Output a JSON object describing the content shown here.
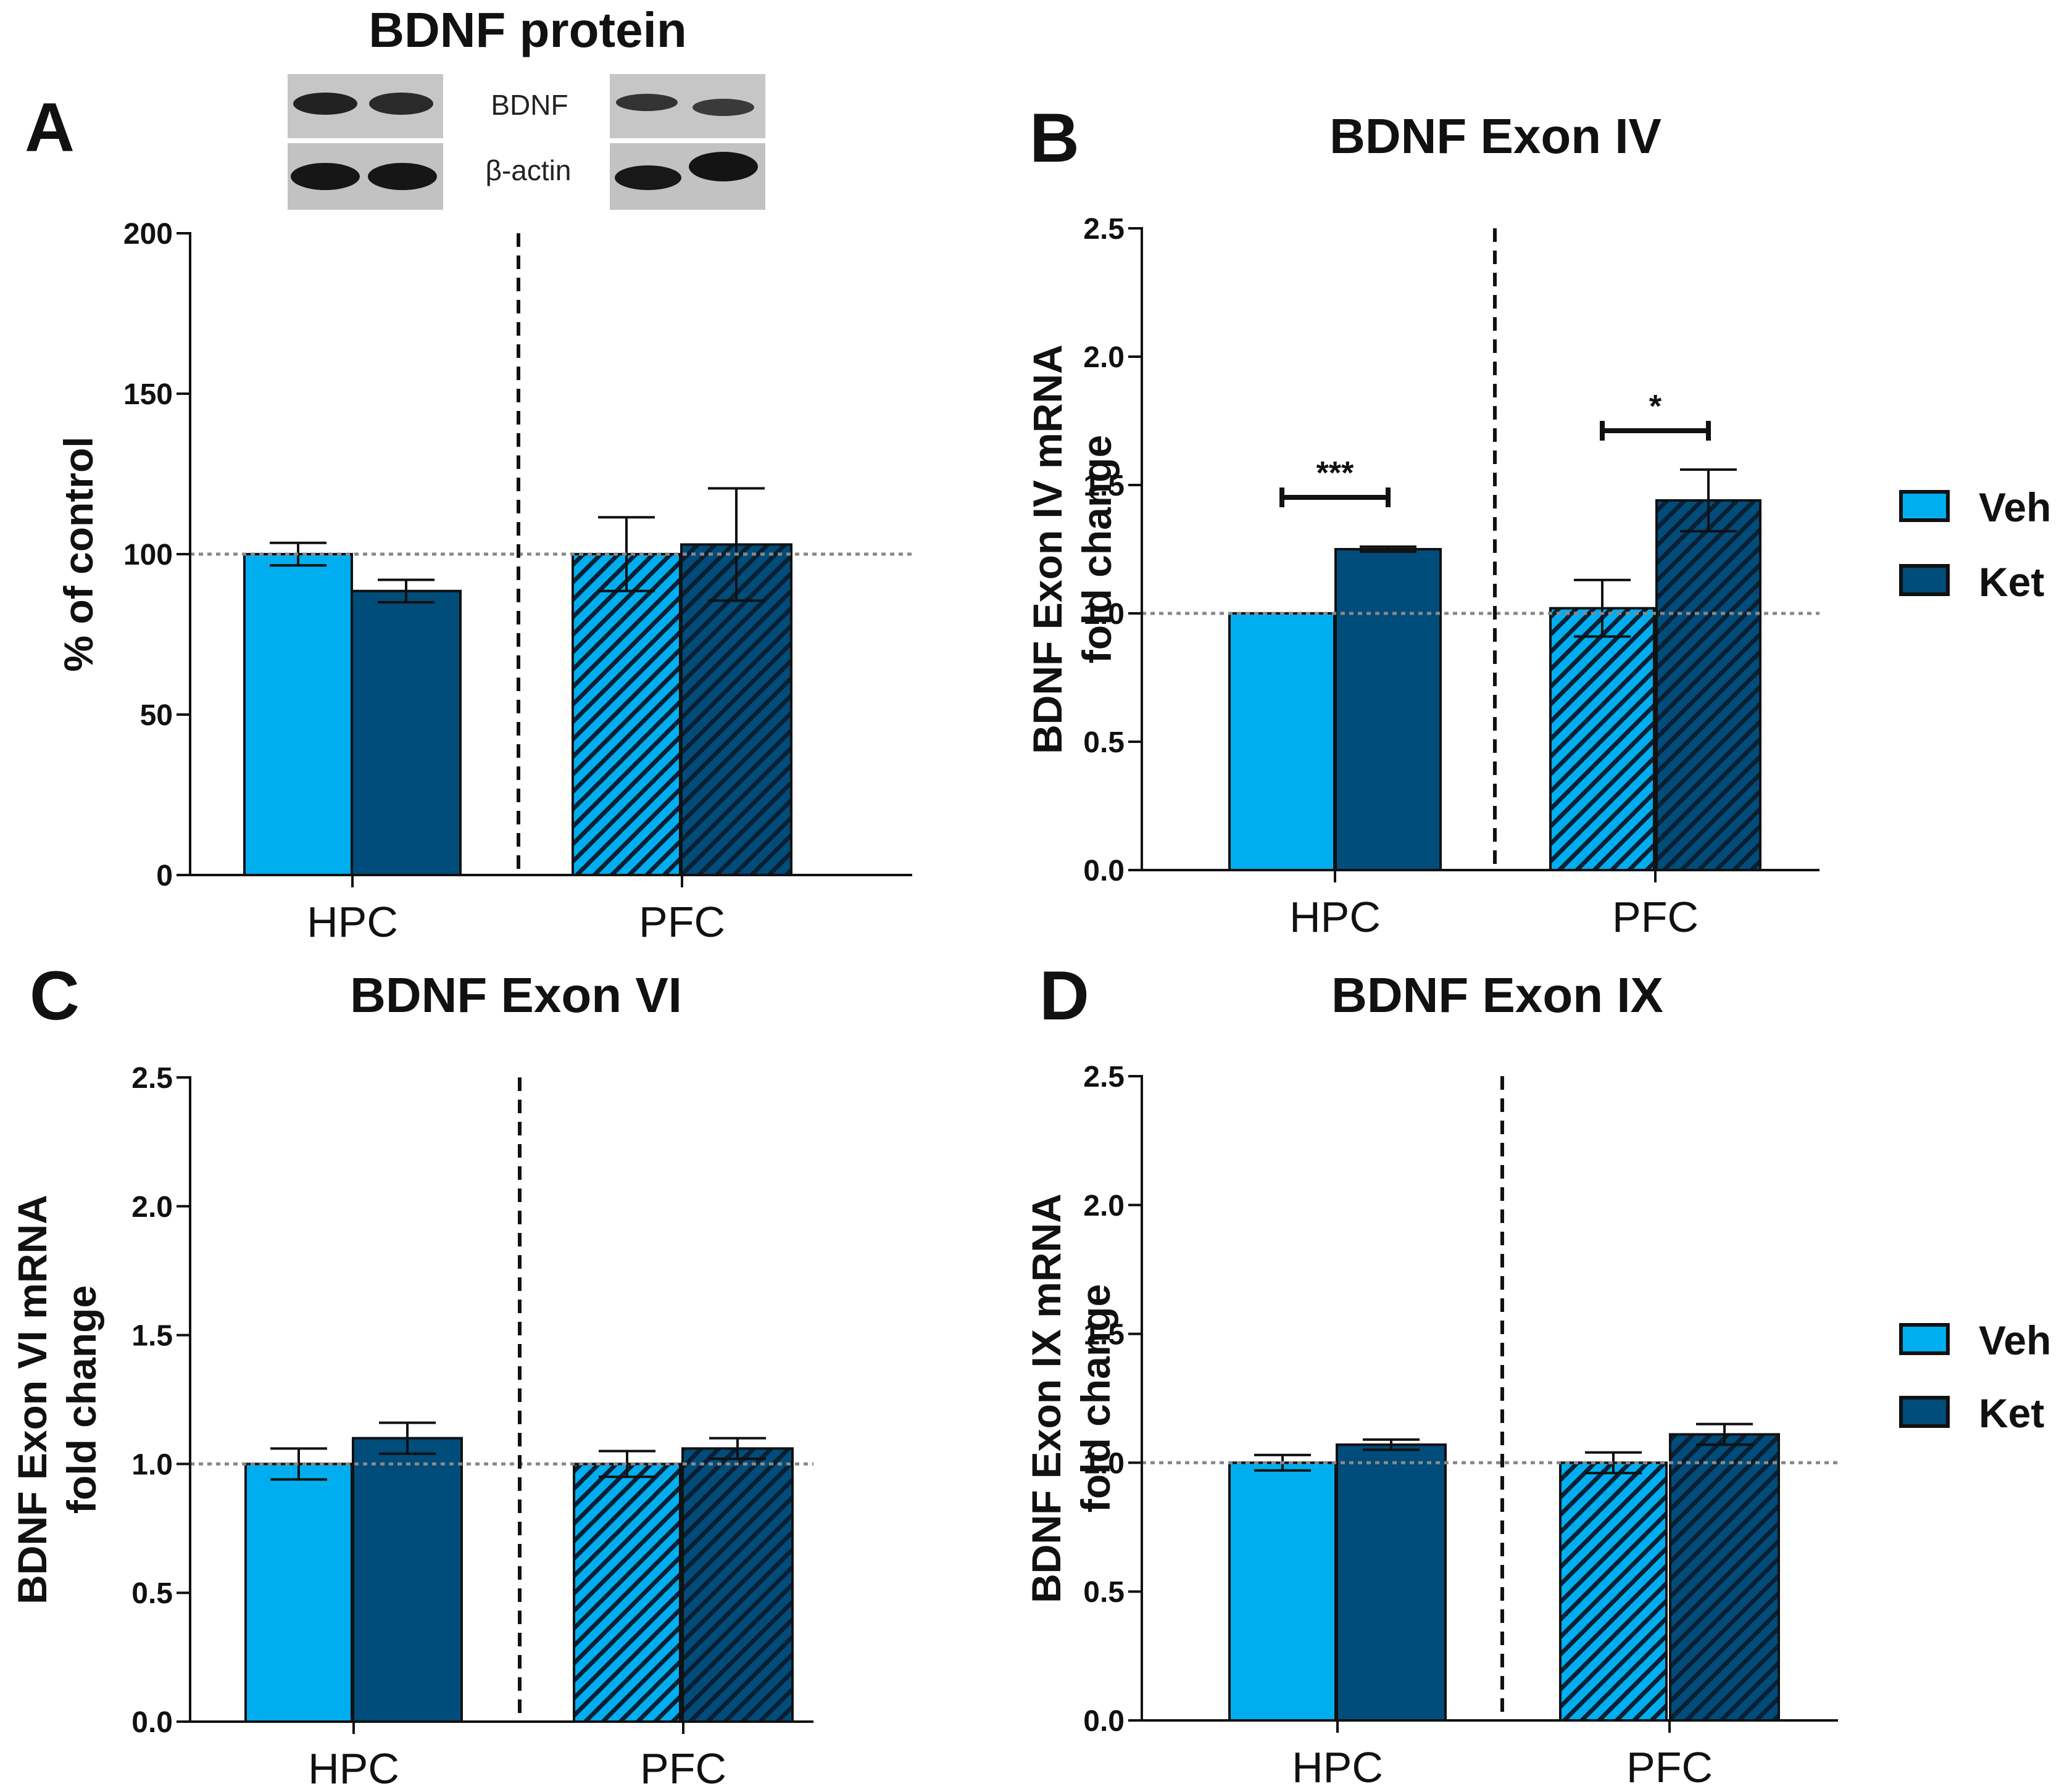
{
  "colors": {
    "veh": "#00aeef",
    "ket": "#004c7a",
    "axis": "#111111",
    "reference_line": "#888888",
    "hatch": "#0a1f33",
    "blot_bg": "#c6c6c6",
    "band": "#222222"
  },
  "western_blot": {
    "title": "BDNF protein",
    "rows": [
      "BDNF",
      "β-actin"
    ]
  },
  "legend": {
    "items": [
      {
        "label": "Veh",
        "color": "#00aeef"
      },
      {
        "label": "Ket",
        "color": "#004c7a"
      }
    ],
    "note": "Solid bars: HPC; hatched bars: PFC"
  },
  "chart_data": [
    {
      "panel": "A",
      "type": "bar",
      "title": "",
      "xlabel": "",
      "ylabel": "% of control",
      "ylim": [
        0,
        200
      ],
      "yticks": [
        0,
        50,
        100,
        150,
        200
      ],
      "ytick_labels": [
        "0",
        "50",
        "100",
        "150",
        "200"
      ],
      "reference_y": 100,
      "categories": [
        "HPC",
        "PFC"
      ],
      "series": [
        {
          "name": "Veh",
          "values": [
            100,
            100
          ],
          "errors": [
            3.5,
            11.5
          ]
        },
        {
          "name": "Ket",
          "values": [
            88.5,
            103
          ],
          "errors": [
            3.5,
            17.5
          ]
        }
      ],
      "significance": []
    },
    {
      "panel": "B",
      "type": "bar",
      "title": "BDNF Exon IV",
      "xlabel": "",
      "ylabel": [
        "BDNF Exon IV mRNA",
        "fold change"
      ],
      "ylim": [
        0,
        2.5
      ],
      "yticks": [
        0,
        0.5,
        1,
        1.5,
        2,
        2.5
      ],
      "ytick_labels": [
        "0.0",
        "0.5",
        "1.0",
        "1.5",
        "2.0",
        "2.5"
      ],
      "reference_y": 1.0,
      "categories": [
        "HPC",
        "PFC"
      ],
      "series": [
        {
          "name": "Veh",
          "values": [
            1.0,
            1.02
          ],
          "errors": [
            0.0,
            0.11
          ]
        },
        {
          "name": "Ket",
          "values": [
            1.25,
            1.44
          ],
          "errors": [
            0.01,
            0.12
          ]
        }
      ],
      "significance": [
        {
          "category_index": 0,
          "label": "***"
        },
        {
          "category_index": 1,
          "label": "*"
        }
      ]
    },
    {
      "panel": "C",
      "type": "bar",
      "title": "BDNF Exon VI",
      "xlabel": "",
      "ylabel": [
        "BDNF Exon VI mRNA",
        "fold change"
      ],
      "ylim": [
        0,
        2.5
      ],
      "yticks": [
        0,
        0.5,
        1,
        1.5,
        2,
        2.5
      ],
      "ytick_labels": [
        "0.0",
        "0.5",
        "1.0",
        "1.5",
        "2.0",
        "2.5"
      ],
      "reference_y": 1.0,
      "categories": [
        "HPC",
        "PFC"
      ],
      "series": [
        {
          "name": "Veh",
          "values": [
            1.0,
            1.0
          ],
          "errors": [
            0.06,
            0.05
          ]
        },
        {
          "name": "Ket",
          "values": [
            1.1,
            1.06
          ],
          "errors": [
            0.06,
            0.04
          ]
        }
      ],
      "significance": []
    },
    {
      "panel": "D",
      "type": "bar",
      "title": "BDNF Exon IX",
      "xlabel": "",
      "ylabel": [
        "BDNF Exon IX mRNA",
        "fold change"
      ],
      "ylim": [
        0,
        2.5
      ],
      "yticks": [
        0,
        0.5,
        1,
        1.5,
        2,
        2.5
      ],
      "ytick_labels": [
        "0.0",
        "0.5",
        "1.0",
        "1.5",
        "2.0",
        "2.5"
      ],
      "reference_y": 1.0,
      "categories": [
        "HPC",
        "PFC"
      ],
      "series": [
        {
          "name": "Veh",
          "values": [
            1.0,
            1.0
          ],
          "errors": [
            0.03,
            0.04
          ]
        },
        {
          "name": "Ket",
          "values": [
            1.07,
            1.11
          ],
          "errors": [
            0.02,
            0.04
          ]
        }
      ],
      "significance": []
    }
  ]
}
